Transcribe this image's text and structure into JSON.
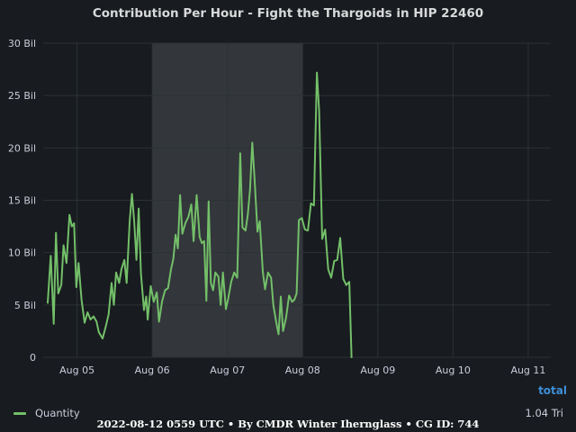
{
  "title": "Contribution Per Hour - Fight the Thargoids in HIP 22460",
  "footer": "2022-08-12 0559 UTC • By CMDR Winter Ihernglass • CG ID: 744",
  "legend": {
    "header": "total",
    "items": [
      {
        "name": "Quantity",
        "total": "1.04 Tri"
      }
    ]
  },
  "colors": {
    "series": "#73bf69",
    "background": "#181b1f",
    "grid": "#2c3235",
    "shade": "#33363b",
    "accent": "#3d8fd9"
  },
  "chart_data": {
    "type": "line",
    "yticks": [
      {
        "value": 0,
        "label": "0"
      },
      {
        "value": 5,
        "label": "5 Bil"
      },
      {
        "value": 10,
        "label": "10 Bil"
      },
      {
        "value": 15,
        "label": "15 Bil"
      },
      {
        "value": 20,
        "label": "20 Bil"
      },
      {
        "value": 25,
        "label": "25 Bil"
      },
      {
        "value": 30,
        "label": "30 Bil"
      }
    ],
    "ylim": [
      0,
      30
    ],
    "xlim": [
      4.55,
      11.3
    ],
    "xticks": [
      {
        "value": 5,
        "label": "Aug 05"
      },
      {
        "value": 6,
        "label": "Aug 06"
      },
      {
        "value": 7,
        "label": "Aug 07"
      },
      {
        "value": 8,
        "label": "Aug 08"
      },
      {
        "value": 9,
        "label": "Aug 09"
      },
      {
        "value": 10,
        "label": "Aug 10"
      },
      {
        "value": 11,
        "label": "Aug 11"
      }
    ],
    "shaded_region": [
      6.0,
      8.0
    ],
    "grid": true,
    "series": [
      {
        "name": "Quantity",
        "points": [
          [
            4.61,
            5.2
          ],
          [
            4.65,
            9.7
          ],
          [
            4.69,
            3.2
          ],
          [
            4.72,
            11.9
          ],
          [
            4.75,
            6.1
          ],
          [
            4.79,
            6.9
          ],
          [
            4.82,
            10.7
          ],
          [
            4.86,
            9.0
          ],
          [
            4.9,
            13.6
          ],
          [
            4.93,
            12.5
          ],
          [
            4.96,
            12.8
          ],
          [
            4.99,
            6.7
          ],
          [
            5.02,
            9.0
          ],
          [
            5.06,
            5.5
          ],
          [
            5.1,
            3.3
          ],
          [
            5.14,
            4.3
          ],
          [
            5.18,
            3.6
          ],
          [
            5.22,
            3.9
          ],
          [
            5.26,
            3.4
          ],
          [
            5.29,
            2.4
          ],
          [
            5.34,
            1.8
          ],
          [
            5.38,
            2.9
          ],
          [
            5.42,
            4.1
          ],
          [
            5.46,
            7.1
          ],
          [
            5.49,
            5.0
          ],
          [
            5.52,
            8.1
          ],
          [
            5.56,
            7.1
          ],
          [
            5.59,
            8.4
          ],
          [
            5.63,
            9.3
          ],
          [
            5.66,
            7.1
          ],
          [
            5.7,
            13.0
          ],
          [
            5.73,
            15.6
          ],
          [
            5.76,
            13.0
          ],
          [
            5.79,
            9.3
          ],
          [
            5.82,
            14.2
          ],
          [
            5.85,
            8.0
          ],
          [
            5.89,
            4.5
          ],
          [
            5.92,
            5.8
          ],
          [
            5.94,
            3.6
          ],
          [
            5.98,
            6.8
          ],
          [
            6.02,
            5.3
          ],
          [
            6.06,
            6.2
          ],
          [
            6.09,
            3.4
          ],
          [
            6.13,
            5.3
          ],
          [
            6.17,
            6.4
          ],
          [
            6.21,
            6.6
          ],
          [
            6.25,
            8.4
          ],
          [
            6.28,
            9.4
          ],
          [
            6.31,
            11.7
          ],
          [
            6.34,
            10.4
          ],
          [
            6.37,
            15.5
          ],
          [
            6.4,
            11.8
          ],
          [
            6.44,
            12.8
          ],
          [
            6.48,
            13.4
          ],
          [
            6.52,
            14.6
          ],
          [
            6.55,
            11.1
          ],
          [
            6.59,
            15.5
          ],
          [
            6.63,
            11.5
          ],
          [
            6.66,
            10.9
          ],
          [
            6.69,
            11.1
          ],
          [
            6.72,
            5.4
          ],
          [
            6.75,
            14.9
          ],
          [
            6.78,
            7.1
          ],
          [
            6.81,
            6.4
          ],
          [
            6.84,
            8.1
          ],
          [
            6.88,
            7.7
          ],
          [
            6.91,
            5.0
          ],
          [
            6.94,
            8.1
          ],
          [
            6.98,
            4.6
          ],
          [
            7.01,
            5.6
          ],
          [
            7.05,
            7.2
          ],
          [
            7.09,
            8.1
          ],
          [
            7.13,
            7.6
          ],
          [
            7.17,
            19.5
          ],
          [
            7.2,
            12.4
          ],
          [
            7.24,
            12.1
          ],
          [
            7.27,
            13.6
          ],
          [
            7.3,
            16.0
          ],
          [
            7.33,
            20.5
          ],
          [
            7.36,
            17.1
          ],
          [
            7.4,
            12.0
          ],
          [
            7.43,
            13.0
          ],
          [
            7.47,
            8.2
          ],
          [
            7.5,
            6.5
          ],
          [
            7.54,
            8.1
          ],
          [
            7.58,
            7.6
          ],
          [
            7.61,
            5.0
          ],
          [
            7.65,
            3.3
          ],
          [
            7.68,
            2.2
          ],
          [
            7.71,
            5.8
          ],
          [
            7.74,
            2.5
          ],
          [
            7.78,
            3.8
          ],
          [
            7.82,
            5.9
          ],
          [
            7.86,
            5.3
          ],
          [
            7.89,
            5.5
          ],
          [
            7.92,
            6.1
          ],
          [
            7.95,
            13.1
          ],
          [
            7.99,
            13.3
          ],
          [
            8.03,
            12.2
          ],
          [
            8.07,
            12.1
          ],
          [
            8.11,
            14.7
          ],
          [
            8.15,
            14.5
          ],
          [
            8.19,
            27.2
          ],
          [
            8.22,
            23.5
          ],
          [
            8.26,
            11.3
          ],
          [
            8.3,
            12.2
          ],
          [
            8.34,
            8.4
          ],
          [
            8.38,
            7.6
          ],
          [
            8.42,
            9.2
          ],
          [
            8.46,
            9.3
          ],
          [
            8.5,
            11.4
          ],
          [
            8.54,
            7.5
          ],
          [
            8.58,
            6.9
          ],
          [
            8.62,
            7.2
          ],
          [
            8.65,
            0.0
          ]
        ]
      }
    ]
  }
}
